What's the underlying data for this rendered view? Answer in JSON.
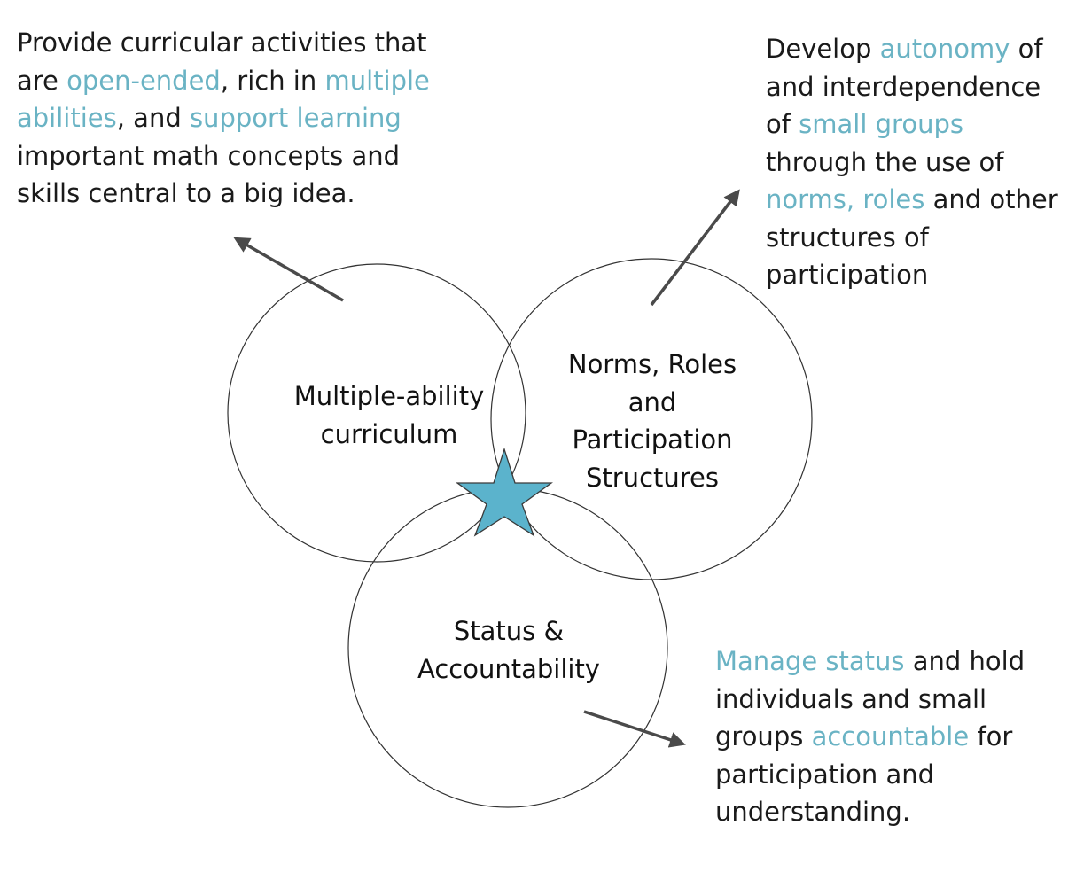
{
  "colors": {
    "highlight": "#6ab3c4",
    "star_fill": "#5bb3cc",
    "arrow": "#4a4a4a",
    "circle_stroke": "#333333"
  },
  "blocks": {
    "curriculum": {
      "lines": [
        [
          {
            "t": "Provide curricular activities that"
          }
        ],
        [
          {
            "t": "are "
          },
          {
            "t": "open-ended",
            "hl": true
          },
          {
            "t": ", rich in "
          },
          {
            "t": "multiple",
            "hl": true
          }
        ],
        [
          {
            "t": "abilities",
            "hl": true
          },
          {
            "t": ", and "
          },
          {
            "t": "support learning",
            "hl": true
          }
        ],
        [
          {
            "t": "important math concepts and"
          }
        ],
        [
          {
            "t": "skills central to a big idea."
          }
        ]
      ]
    },
    "norms": {
      "lines": [
        [
          {
            "t": "Develop "
          },
          {
            "t": "autonomy",
            "hl": true
          },
          {
            "t": " of"
          }
        ],
        [
          {
            "t": "and interdependence"
          }
        ],
        [
          {
            "t": "of "
          },
          {
            "t": "small groups",
            "hl": true
          }
        ],
        [
          {
            "t": "through the use of"
          }
        ],
        [
          {
            "t": "norms, roles",
            "hl": true
          },
          {
            "t": " and other"
          }
        ],
        [
          {
            "t": "structures of"
          }
        ],
        [
          {
            "t": "participation"
          }
        ]
      ]
    },
    "status": {
      "lines": [
        [
          {
            "t": "Manage status",
            "hl": true
          },
          {
            "t": " and hold"
          }
        ],
        [
          {
            "t": "individuals and small"
          }
        ],
        [
          {
            "t": "groups "
          },
          {
            "t": "accountable",
            "hl": true
          },
          {
            "t": " for"
          }
        ],
        [
          {
            "t": "participation and"
          }
        ],
        [
          {
            "t": "understanding."
          }
        ]
      ]
    }
  },
  "circles": {
    "curriculum": {
      "label_lines": [
        "Multiple-ability",
        "curriculum"
      ]
    },
    "norms": {
      "label_lines": [
        "Norms, Roles",
        "and",
        "Participation",
        "Structures"
      ]
    },
    "status": {
      "label_lines": [
        "Status &",
        "Accountability"
      ]
    }
  },
  "icons": {
    "center": "star-icon",
    "arrows": "arrow-icon"
  }
}
